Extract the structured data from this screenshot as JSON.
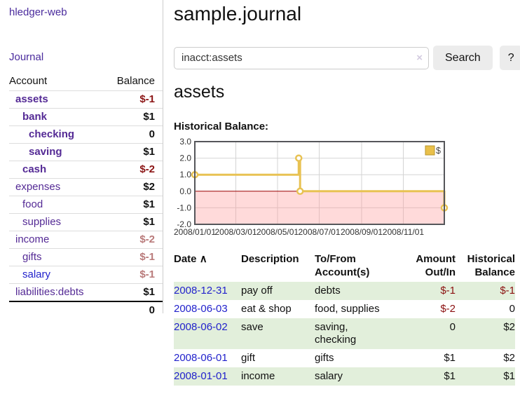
{
  "app": {
    "title": "hledger-web"
  },
  "sidebar": {
    "journal_label": "Journal",
    "accounts_table": {
      "headers": [
        "Account",
        "Balance"
      ],
      "rows": [
        {
          "name": "assets",
          "balance": "$-1"
        },
        {
          "name": "bank",
          "balance": "$1"
        },
        {
          "name": "checking",
          "balance": "0"
        },
        {
          "name": "saving",
          "balance": "$1"
        },
        {
          "name": "cash",
          "balance": "$-2"
        },
        {
          "name": "expenses",
          "balance": "$2"
        },
        {
          "name": "food",
          "balance": "$1"
        },
        {
          "name": "supplies",
          "balance": "$1"
        },
        {
          "name": "income",
          "balance": "$-2"
        },
        {
          "name": "gifts",
          "balance": "$-1"
        },
        {
          "name": "salary",
          "balance": "$-1"
        },
        {
          "name": "liabilities:debts",
          "balance": "$1"
        }
      ],
      "total": "0"
    }
  },
  "main": {
    "title": "sample.journal",
    "search": {
      "value": "inacct:assets",
      "clear_icon": "×",
      "button_label": "Search",
      "help_label": "?"
    },
    "account_heading": "assets",
    "chart_label": "Historical Balance:"
  },
  "chart_data": {
    "type": "line",
    "style": "step",
    "title": "Historical Balance",
    "xmin": "2008-01-01",
    "xmax": "2008-12-31",
    "ylim": [
      -2,
      3
    ],
    "grid": true,
    "legend_position": "top-right",
    "negative_region_shaded": true,
    "yticks": [
      {
        "label": "3.0",
        "v": 3
      },
      {
        "label": "2.0",
        "v": 2
      },
      {
        "label": "1.0",
        "v": 1
      },
      {
        "label": "0.0",
        "v": 0
      },
      {
        "label": "-1.0",
        "v": -1
      },
      {
        "label": "-2.0",
        "v": -2
      }
    ],
    "xticks": [
      {
        "label": "2008/01/01",
        "date": "2008-01-01"
      },
      {
        "label": "2008/03/01",
        "date": "2008-03-01"
      },
      {
        "label": "2008/05/01",
        "date": "2008-05-01"
      },
      {
        "label": "2008/07/01",
        "date": "2008-07-01"
      },
      {
        "label": "2008/09/01",
        "date": "2008-09-01"
      },
      {
        "label": "2008/11/01",
        "date": "2008-11-01"
      }
    ],
    "series": [
      {
        "name": "$",
        "points": [
          {
            "date": "2008-01-01",
            "value": 1
          },
          {
            "date": "2008-06-01",
            "value": 2
          },
          {
            "date": "2008-06-03",
            "value": 0
          },
          {
            "date": "2008-12-31",
            "value": -1
          }
        ]
      }
    ],
    "colors": {
      "line": "#e8c253",
      "marker_fill": "#ffffff",
      "grid": "#d4d4d4",
      "border": "#55565a",
      "zero_line": "#990000",
      "negative_fill": "rgba(255,150,150,0.35)",
      "legend_fill": "#e9c04a",
      "legend_border": "#b8962e",
      "tick_text": "#333333"
    }
  },
  "register": {
    "headers": {
      "date": "Date",
      "sort_icon": "∧",
      "description": "Description",
      "accounts_l1": "To/From",
      "accounts_l2": "Account(s)",
      "amount_l1": "Amount",
      "amount_l2": "Out/In",
      "balance_l1": "Historical",
      "balance_l2": "Balance"
    },
    "rows": [
      {
        "date": "2008-12-31",
        "description": "pay off",
        "accounts": "debts",
        "amount": "$-1",
        "balance": "$-1"
      },
      {
        "date": "2008-06-03",
        "description": "eat & shop",
        "accounts": "food, supplies",
        "amount": "$-2",
        "balance": "0"
      },
      {
        "date": "2008-06-02",
        "description": "save",
        "accounts": "saving,\nchecking",
        "amount": "0",
        "balance": "$2"
      },
      {
        "date": "2008-06-01",
        "description": "gift",
        "accounts": "gifts",
        "amount": "$1",
        "balance": "$2"
      },
      {
        "date": "2008-01-01",
        "description": "income",
        "accounts": "salary",
        "amount": "$1",
        "balance": "$1"
      }
    ]
  }
}
